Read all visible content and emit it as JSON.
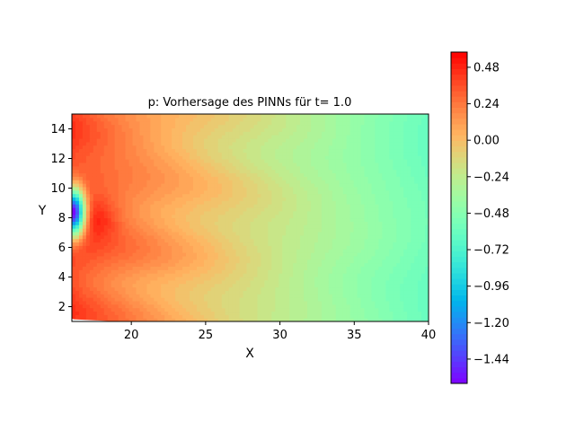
{
  "chart_data": {
    "type": "heatmap",
    "title": "p: Vorhersage des PINNs für t= 1.0",
    "xlabel": "X",
    "ylabel": "Y",
    "xlim": [
      16,
      40
    ],
    "ylim": [
      1,
      15
    ],
    "x_ticks": [
      20,
      25,
      30,
      35,
      40
    ],
    "y_ticks": [
      2,
      4,
      6,
      8,
      10,
      12,
      14
    ],
    "colormap": "rainbow",
    "colorbar": {
      "vmin": -1.6,
      "vmax": 0.58,
      "ticks": [
        "0.48",
        "0.24",
        "0.00",
        "−0.24",
        "−0.48",
        "−0.72",
        "−0.96",
        "−1.20",
        "−1.44"
      ],
      "tick_values": [
        0.48,
        0.24,
        0.0,
        -0.24,
        -0.48,
        -0.72,
        -0.96,
        -1.2,
        -1.44
      ]
    },
    "field_features": {
      "low_pressure_center": {
        "x": 16.1,
        "y": 8.4,
        "value": -1.5
      },
      "high_pressure_center": {
        "x": 17.8,
        "y": 8.0,
        "value": 0.56
      },
      "left_edge_value": 0.45,
      "right_edge_value": -0.6
    }
  }
}
